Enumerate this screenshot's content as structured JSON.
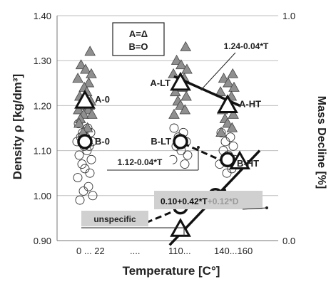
{
  "chart_data": {
    "type": "scatter",
    "xlabel": "Temperature [C°]",
    "ylabel": "Density ρ [kg/dm³]",
    "ylabel_right": "Mass Decline [%]",
    "ylim": [
      0.9,
      1.4
    ],
    "ylim_right": [
      0.0,
      1.0
    ],
    "y_ticks": [
      "0.90",
      "1.00",
      "1.10",
      "1.20",
      "1.30",
      "1.40"
    ],
    "y_ticks_right": [
      "0.0",
      "1.0"
    ],
    "x_tick_labels": [
      "0 ... 22",
      "....",
      "110...",
      "140...160"
    ],
    "grid": true,
    "legend": {
      "line1": "A=Δ",
      "line2": "B=O"
    },
    "annotations": {
      "eq_a": "1.24-0.04*T",
      "eq_b": "1.12-0.04*T",
      "eq_mass_main": "0.10+0.42*T",
      "eq_mass_extra": "+0.12*D",
      "unspecific": "unspecific"
    },
    "groups": {
      "A": {
        "name": "A",
        "scatter_22": [
          1.32,
          1.29,
          1.28,
          1.27,
          1.26,
          1.25,
          1.24,
          1.23,
          1.22,
          1.21,
          1.21,
          1.2,
          1.2,
          1.19,
          1.19,
          1.18,
          1.18,
          1.17,
          1.16,
          1.15,
          1.14
        ],
        "scatter_110": [
          1.33,
          1.3,
          1.29,
          1.28,
          1.27,
          1.26,
          1.25,
          1.24,
          1.23,
          1.22,
          1.21,
          1.2,
          1.19,
          1.18
        ],
        "scatter_150": [
          1.27,
          1.26,
          1.25,
          1.24,
          1.23,
          1.22,
          1.21,
          1.2,
          1.19,
          1.18,
          1.17,
          1.16,
          1.15,
          1.14
        ],
        "means": [
          {
            "label": "A-0",
            "x": 22,
            "y": 1.21
          },
          {
            "label": "A-LT",
            "x": 110,
            "y": 1.25
          },
          {
            "label": "A-HT",
            "x": 150,
            "y": 1.2
          }
        ]
      },
      "B": {
        "name": "B",
        "scatter_22": [
          1.16,
          1.15,
          1.14,
          1.14,
          1.13,
          1.13,
          1.12,
          1.12,
          1.11,
          1.11,
          1.1,
          1.09,
          1.08,
          1.07,
          1.06,
          1.05,
          1.04,
          1.02,
          1.01,
          1.0,
          0.99
        ],
        "scatter_110": [
          1.15,
          1.14,
          1.13,
          1.12,
          1.11,
          1.1,
          1.09,
          1.08,
          1.07
        ],
        "scatter_150": [
          1.14,
          1.13,
          1.12,
          1.11,
          1.1,
          1.09,
          1.08,
          1.07,
          1.06,
          1.05
        ],
        "means": [
          {
            "label": "B-0",
            "x": 22,
            "y": 1.12
          },
          {
            "label": "B-LT",
            "x": 110,
            "y": 1.12
          },
          {
            "label": "B-HT",
            "x": 150,
            "y": 1.08
          }
        ]
      }
    },
    "mass_decline": {
      "A": [
        {
          "x": 110,
          "y": 0.05
        },
        {
          "x": 160,
          "y": 0.35
        }
      ],
      "B": [
        {
          "x": 110,
          "y": 0.15
        },
        {
          "x": 140,
          "y": 0.2
        }
      ]
    }
  }
}
